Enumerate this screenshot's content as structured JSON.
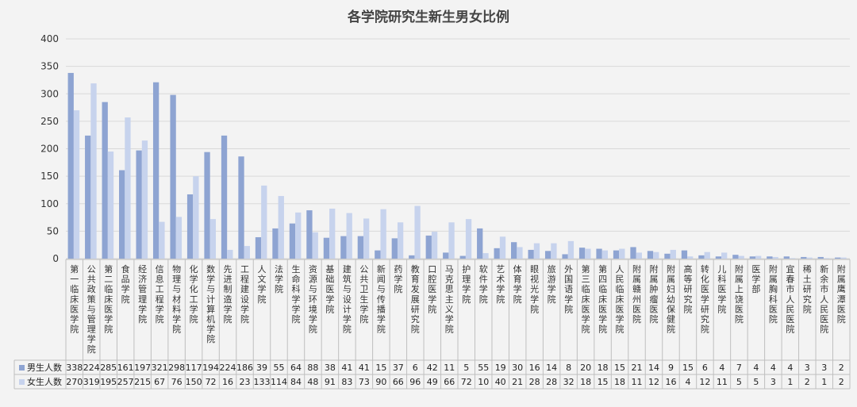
{
  "chart_data": {
    "type": "bar",
    "title": "各学院研究生新生男女比例",
    "ylim": [
      0,
      400
    ],
    "yticks": [
      0,
      50,
      100,
      150,
      200,
      250,
      300,
      350,
      400
    ],
    "grid": true,
    "legend": "table",
    "categories": [
      "第一临床医学院",
      "公共政策与管理学院",
      "第二临床医学院",
      "食品学院",
      "经济管理学院",
      "信息工程学院",
      "物理与材料学院",
      "化学化工学院",
      "数学与计算机学院",
      "先进制造学院",
      "工程建设学院",
      "人文学院",
      "法学院",
      "生命科学学院",
      "资源与环境学院",
      "基础医学院",
      "建筑与设计学院",
      "公共卫生学院",
      "新闻与传播学院",
      "药学院",
      "教育发展研究院",
      "口腔医学院",
      "马克思主义学院",
      "护理学院",
      "软件学院",
      "艺术学院",
      "体育学院",
      "眼视光学院",
      "旅游学院",
      "外国语学院",
      "第三临床医学院",
      "第四临床医学院",
      "人民临床医学院",
      "附属赣州医院",
      "附属肿瘤医院",
      "附属妇幼保健院",
      "高等研究院",
      "转化医学研究院",
      "儿科医学院",
      "附属上饶医院",
      "医学部",
      "附属胸科医院",
      "宜春市人民医院",
      "稀土研究院",
      "新余市人民医院",
      "附属鹰潭医院"
    ],
    "series": [
      {
        "name": "男生人数",
        "color": "#8ea4d2",
        "values": [
          338,
          224,
          285,
          161,
          197,
          321,
          298,
          117,
          194,
          224,
          186,
          39,
          55,
          64,
          88,
          38,
          41,
          41,
          15,
          37,
          6,
          42,
          11,
          5,
          55,
          19,
          30,
          16,
          14,
          8,
          20,
          18,
          15,
          21,
          14,
          9,
          15,
          6,
          4,
          7,
          4,
          4,
          4,
          3,
          3,
          2
        ]
      },
      {
        "name": "女生人数",
        "color": "#c7d3ed",
        "values": [
          270,
          319,
          195,
          257,
          215,
          67,
          76,
          150,
          72,
          16,
          23,
          133,
          114,
          84,
          48,
          91,
          83,
          73,
          90,
          66,
          96,
          49,
          66,
          72,
          10,
          40,
          21,
          28,
          28,
          32,
          18,
          15,
          18,
          11,
          12,
          16,
          4,
          12,
          11,
          5,
          5,
          3,
          1,
          2,
          1,
          2
        ]
      }
    ]
  }
}
